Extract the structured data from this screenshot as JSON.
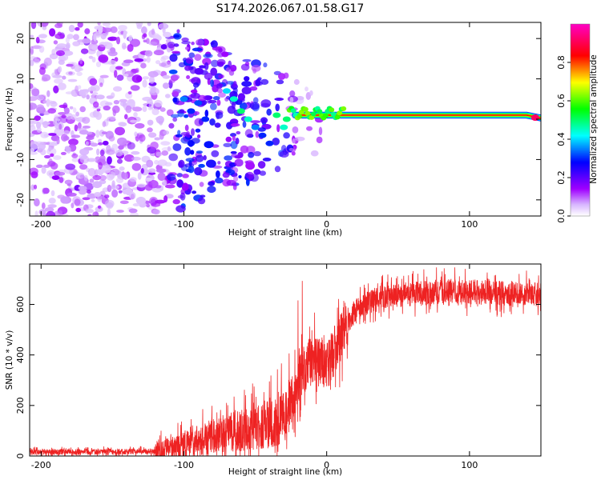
{
  "title": "S174.2026.067.01.58.G17",
  "chart_data": [
    {
      "type": "heatmap",
      "name": "spectrogram",
      "xlabel": "Height of straight line (km)",
      "ylabel": "Frequency (Hz)",
      "xlim": [
        -208,
        150
      ],
      "ylim": [
        -24,
        24
      ],
      "xticks": [
        -200,
        -100,
        0,
        100
      ],
      "xtick_labels": [
        "-200",
        "-100",
        "0",
        "100"
      ],
      "yticks": [
        -20,
        -10,
        0,
        10,
        20
      ],
      "ytick_labels": [
        "-20",
        "-10",
        "0",
        "10",
        "20"
      ],
      "ridge": {
        "description_points": [
          [
            -25,
            3
          ],
          [
            -20,
            1
          ],
          [
            -10,
            2
          ],
          [
            0,
            2
          ],
          [
            10,
            2
          ],
          [
            20,
            1
          ],
          [
            140,
            1
          ],
          [
            150,
            0.5
          ]
        ],
        "from_x": -22,
        "to_x": 150
      },
      "colorbar": {
        "label": "Normalized spectral amplitude",
        "range": [
          0.0,
          1.0
        ],
        "ticks": [
          0.0,
          0.2,
          0.4,
          0.6,
          0.8
        ],
        "tick_labels": [
          "0.0",
          "0.2",
          "0.4",
          "0.6",
          "0.8"
        ]
      }
    },
    {
      "type": "line",
      "name": "snr",
      "xlabel": "Height of straight line (km)",
      "ylabel": "SNR (10 * v/v)",
      "xlim": [
        -208,
        150
      ],
      "ylim": [
        0,
        760
      ],
      "xticks": [
        -200,
        -100,
        0,
        100
      ],
      "xtick_labels": [
        "-200",
        "-100",
        "0",
        "100"
      ],
      "yticks": [
        0,
        200,
        400,
        600
      ],
      "ytick_labels": [
        "0",
        "200",
        "400",
        "600"
      ],
      "color": "#ee2222",
      "trend": {
        "x": [
          -208,
          -120,
          -100,
          -80,
          -60,
          -40,
          -30,
          -22,
          -18,
          -10,
          0,
          10,
          20,
          30,
          40,
          60,
          80,
          100,
          120,
          150
        ],
        "y": [
          15,
          18,
          40,
          80,
          100,
          130,
          160,
          240,
          330,
          380,
          350,
          480,
          570,
          610,
          630,
          640,
          650,
          650,
          645,
          640
        ]
      }
    }
  ],
  "colors": {
    "line": "#ee2222",
    "colormap": [
      "#ffffff",
      "#a000ff",
      "#0000ff",
      "#00ffff",
      "#00ff00",
      "#ffff00",
      "#ff0000",
      "#ff00c0"
    ]
  }
}
